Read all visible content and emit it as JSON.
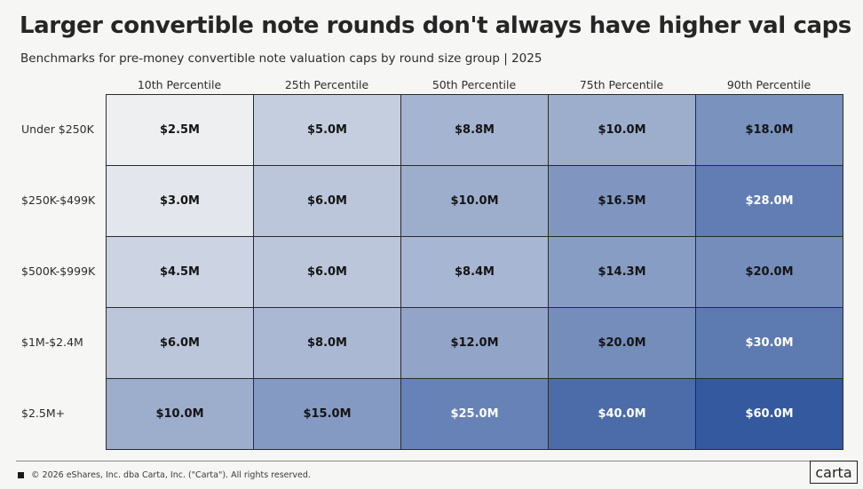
{
  "chart_data": {
    "type": "heatmap",
    "title": "Larger convertible note rounds don't always have higher val caps",
    "subtitle": "Benchmarks for pre-money convertible note valuation caps by round size group | 2025",
    "columns": [
      "10th Percentile",
      "25th Percentile",
      "50th Percentile",
      "75th Percentile",
      "90th Percentile"
    ],
    "rows": [
      "Under $250K",
      "$250K-$499K",
      "$500K-$999K",
      "$1M-$2.4M",
      "$2.5M+"
    ],
    "values": [
      [
        2.5,
        5.0,
        8.8,
        10.0,
        18.0
      ],
      [
        3.0,
        6.0,
        10.0,
        16.5,
        28.0
      ],
      [
        4.5,
        6.0,
        8.4,
        14.3,
        20.0
      ],
      [
        6.0,
        8.0,
        12.0,
        20.0,
        30.0
      ],
      [
        10.0,
        15.0,
        25.0,
        40.0,
        60.0
      ]
    ],
    "labels": [
      [
        "$2.5M",
        "$5.0M",
        "$8.8M",
        "$10.0M",
        "$18.0M"
      ],
      [
        "$3.0M",
        "$6.0M",
        "$10.0M",
        "$16.5M",
        "$28.0M"
      ],
      [
        "$4.5M",
        "$6.0M",
        "$8.4M",
        "$14.3M",
        "$20.0M"
      ],
      [
        "$6.0M",
        "$8.0M",
        "$12.0M",
        "$20.0M",
        "$30.0M"
      ],
      [
        "$10.0M",
        "$15.0M",
        "$25.0M",
        "$40.0M",
        "$60.0M"
      ]
    ],
    "unit": "$M",
    "color_scale": {
      "low": "#eeeff1",
      "high": "#34599f",
      "min": 2.5,
      "max": 60.0
    }
  },
  "footer": {
    "copyright": "© 2026 eShares, Inc. dba Carta, Inc. (\"Carta\"). All rights reserved."
  },
  "logo": {
    "text": "carta"
  }
}
